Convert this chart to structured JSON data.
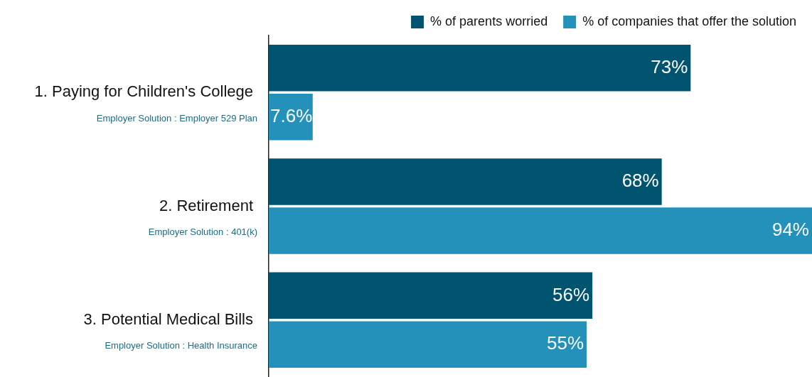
{
  "chart_data": {
    "type": "bar",
    "orientation": "horizontal",
    "categories": [
      "1. Paying for Children's College",
      "2. Retirement",
      "3. Potential Medical Bills"
    ],
    "series": [
      {
        "name": "% of parents worried",
        "color": "#00546f",
        "values": [
          73,
          68,
          56
        ],
        "value_labels": [
          "73%",
          "68%",
          "56%"
        ]
      },
      {
        "name": "% of companies that offer the solution",
        "color": "#2391b9",
        "values": [
          7.6,
          94,
          55
        ],
        "value_labels": [
          "7.6%",
          "94%",
          "55%"
        ]
      }
    ],
    "legend": "top right",
    "annotations": [
      "Employer Solution : Employer 529 Plan",
      "Employer Solution : 401(k)",
      "Employer Solution : Health Insurance"
    ]
  }
}
